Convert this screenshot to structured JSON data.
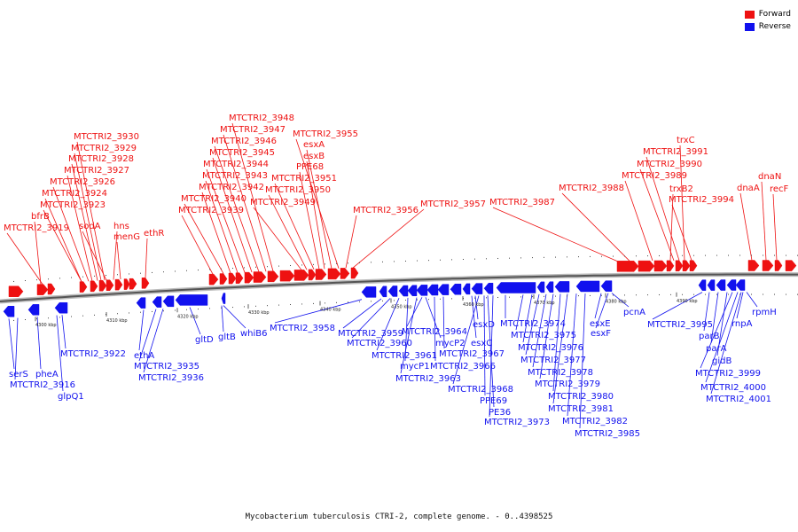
{
  "legend": {
    "forward": {
      "label": "Forward",
      "color": "#ee1111"
    },
    "reverse": {
      "label": "Reverse",
      "color": "#1111ee"
    }
  },
  "caption": "Mycobacterium tuberculosis CTRI-2, complete genome. - 0..4398525",
  "forward_labels": [
    "bfrB",
    "MTCTRI2_3919",
    "MTCTRI2_3923",
    "MTCTRI2_3924",
    "MTCTRI2_3926",
    "MTCTRI2_3927",
    "MTCTRI2_3928",
    "MTCTRI2_3929",
    "MTCTRI2_3930",
    "sodA",
    "hns",
    "menG",
    "ethR",
    "MTCTRI2_3939",
    "MTCTRI2_3940",
    "MTCTRI2_3942",
    "MTCTRI2_3943",
    "MTCTRI2_3944",
    "MTCTRI2_3945",
    "MTCTRI2_3946",
    "MTCTRI2_3947",
    "MTCTRI2_3948",
    "MTCTRI2_3949",
    "MTCTRI2_3950",
    "MTCTRI2_3951",
    "PPE68",
    "esxB",
    "esxA",
    "MTCTRI2_3955",
    "MTCTRI2_3956",
    "MTCTRI2_3957",
    "MTCTRI2_3987",
    "MTCTRI2_3988",
    "MTCTRI2_3989",
    "trxB2",
    "MTCTRI2_3990",
    "MTCTRI2_3991",
    "trxC",
    "MTCTRI2_3994",
    "dnaA",
    "dnaN",
    "recF"
  ],
  "reverse_labels": [
    "serS",
    "MTCTRI2_3916",
    "pheA",
    "glpQ1",
    "MTCTRI2_3922",
    "ethA",
    "MTCTRI2_3935",
    "MTCTRI2_3936",
    "gltD",
    "gltB",
    "whiB6",
    "MTCTRI2_3958",
    "MTCTRI2_3959",
    "MTCTRI2_3960",
    "MTCTRI2_3961",
    "mycP1",
    "MTCTRI2_3963",
    "MTCTRI2_3964",
    "mycP2",
    "MTCTRI2_3966",
    "MTCTRI2_3967",
    "esxC",
    "esxD",
    "MTCTRI2_3968",
    "PPE69",
    "PE36",
    "MTCTRI2_3973",
    "MTCTRI2_3974",
    "MTCTRI2_3975",
    "MTCTRI2_3976",
    "MTCTRI2_3977",
    "MTCTRI2_3978",
    "MTCTRI2_3979",
    "MTCTRI2_3980",
    "MTCTRI2_3981",
    "MTCTRI2_3982",
    "MTCTRI2_3985",
    "esxE",
    "esxF",
    "pcnA",
    "MTCTRI2_3995",
    "parB",
    "parA",
    "gidB",
    "MTCTRI2_3999",
    "MTCTRI2_4000",
    "MTCTRI2_4001",
    "rnpA",
    "rpmH"
  ],
  "ticks": [
    "4300 kbp",
    "4310 kbp",
    "4320 kbp",
    "4330 kbp",
    "4340 kbp",
    "4350 kbp",
    "4360 kbp",
    "4370 kbp",
    "4380 kbp",
    "4390 kbp"
  ]
}
